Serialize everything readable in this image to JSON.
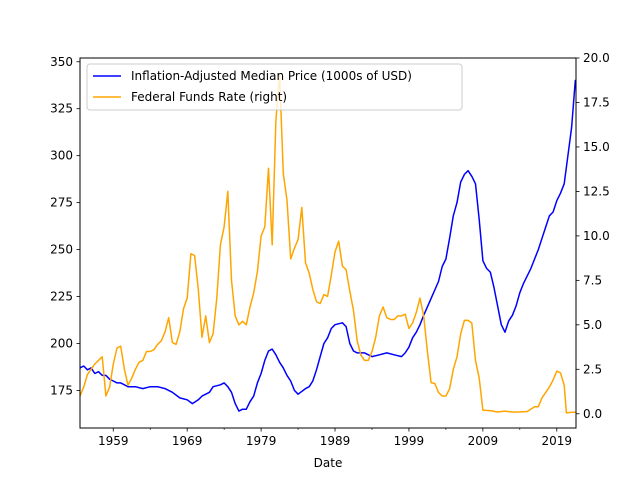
{
  "chart_data": {
    "type": "line",
    "xlabel": "Date",
    "x_ticks": [
      "1959",
      "1969",
      "1979",
      "1989",
      "1999",
      "2009",
      "2019"
    ],
    "x_range": [
      1954.5,
      2021.6
    ],
    "y_left": {
      "range": [
        155,
        352
      ],
      "ticks": [
        175,
        200,
        225,
        250,
        275,
        300,
        325,
        350
      ]
    },
    "y_right": {
      "range": [
        -0.8,
        20.0
      ],
      "ticks": [
        "0.0",
        "2.5",
        "5.0",
        "7.5",
        "10.0",
        "12.5",
        "15.0",
        "17.5",
        "20.0"
      ],
      "tick_values": [
        0,
        2.5,
        5,
        7.5,
        10,
        12.5,
        15,
        17.5,
        20
      ]
    },
    "legend_position": "upper-left",
    "series": [
      {
        "name": "Inflation-Adjusted Median Price (1000s of USD)",
        "axis": "left",
        "color": "#0000ff",
        "points": [
          [
            1954.5,
            187
          ],
          [
            1955,
            188
          ],
          [
            1955.5,
            186
          ],
          [
            1956,
            187
          ],
          [
            1956.5,
            184
          ],
          [
            1957,
            185
          ],
          [
            1957.5,
            183
          ],
          [
            1958,
            183
          ],
          [
            1958.5,
            181
          ],
          [
            1959,
            180
          ],
          [
            1959.5,
            179
          ],
          [
            1960,
            179
          ],
          [
            1960.5,
            178
          ],
          [
            1961,
            177
          ],
          [
            1962,
            177
          ],
          [
            1963,
            176
          ],
          [
            1964,
            177
          ],
          [
            1965,
            177
          ],
          [
            1966,
            176
          ],
          [
            1967,
            174
          ],
          [
            1968,
            171
          ],
          [
            1969,
            170
          ],
          [
            1969.7,
            168
          ],
          [
            1970.5,
            170
          ],
          [
            1971,
            172
          ],
          [
            1972,
            174
          ],
          [
            1972.5,
            177
          ],
          [
            1973.5,
            178
          ],
          [
            1974,
            179
          ],
          [
            1974.5,
            177
          ],
          [
            1975,
            174
          ],
          [
            1975.5,
            168
          ],
          [
            1976,
            164
          ],
          [
            1976.5,
            165
          ],
          [
            1977,
            165
          ],
          [
            1977.5,
            169
          ],
          [
            1978,
            172
          ],
          [
            1978.5,
            179
          ],
          [
            1979,
            184
          ],
          [
            1979.5,
            191
          ],
          [
            1980,
            196
          ],
          [
            1980.5,
            197
          ],
          [
            1981,
            194
          ],
          [
            1981.5,
            190
          ],
          [
            1982,
            187
          ],
          [
            1982.5,
            183
          ],
          [
            1983,
            180
          ],
          [
            1983.5,
            175
          ],
          [
            1984,
            173
          ],
          [
            1985,
            176
          ],
          [
            1985.5,
            177
          ],
          [
            1986,
            180
          ],
          [
            1986.5,
            186
          ],
          [
            1987,
            193
          ],
          [
            1987.5,
            200
          ],
          [
            1988,
            203
          ],
          [
            1988.5,
            208
          ],
          [
            1989,
            210
          ],
          [
            1990,
            211
          ],
          [
            1990.5,
            209
          ],
          [
            1991,
            200
          ],
          [
            1991.5,
            196
          ],
          [
            1992,
            195
          ],
          [
            1993,
            195
          ],
          [
            1994,
            193
          ],
          [
            1995,
            194
          ],
          [
            1996,
            195
          ],
          [
            1997,
            194
          ],
          [
            1998,
            193
          ],
          [
            1998.5,
            195
          ],
          [
            1999,
            198
          ],
          [
            1999.5,
            203
          ],
          [
            2000,
            206
          ],
          [
            2000.5,
            210
          ],
          [
            2001,
            215
          ],
          [
            2002,
            224
          ],
          [
            2003,
            233
          ],
          [
            2003.5,
            241
          ],
          [
            2004,
            245
          ],
          [
            2004.5,
            256
          ],
          [
            2005,
            268
          ],
          [
            2005.5,
            275
          ],
          [
            2006,
            286
          ],
          [
            2006.5,
            290
          ],
          [
            2007,
            292
          ],
          [
            2007.5,
            289
          ],
          [
            2008,
            285
          ],
          [
            2008.5,
            266
          ],
          [
            2009,
            244
          ],
          [
            2009.5,
            240
          ],
          [
            2010,
            238
          ],
          [
            2010.5,
            230
          ],
          [
            2011,
            220
          ],
          [
            2011.5,
            210
          ],
          [
            2012,
            206
          ],
          [
            2012.5,
            212
          ],
          [
            2013,
            215
          ],
          [
            2013.5,
            220
          ],
          [
            2014,
            227
          ],
          [
            2014.5,
            232
          ],
          [
            2015,
            236
          ],
          [
            2015.5,
            240
          ],
          [
            2016,
            245
          ],
          [
            2016.5,
            250
          ],
          [
            2017,
            256
          ],
          [
            2017.5,
            262
          ],
          [
            2018,
            268
          ],
          [
            2018.5,
            270
          ],
          [
            2019,
            276
          ],
          [
            2019.5,
            280
          ],
          [
            2020,
            285
          ],
          [
            2020.5,
            300
          ],
          [
            2021,
            315
          ],
          [
            2021.5,
            340
          ]
        ]
      },
      {
        "name": "Federal Funds Rate (right)",
        "axis": "right",
        "color": "#ffa500",
        "points": [
          [
            1954.5,
            1.0
          ],
          [
            1955,
            1.5
          ],
          [
            1955.5,
            2.2
          ],
          [
            1956,
            2.5
          ],
          [
            1956.5,
            2.8
          ],
          [
            1957,
            3.0
          ],
          [
            1957.5,
            3.2
          ],
          [
            1958,
            1.0
          ],
          [
            1958.5,
            1.5
          ],
          [
            1959,
            2.8
          ],
          [
            1959.5,
            3.7
          ],
          [
            1960,
            3.8
          ],
          [
            1960.5,
            2.5
          ],
          [
            1961,
            1.6
          ],
          [
            1961.5,
            2.0
          ],
          [
            1962,
            2.5
          ],
          [
            1962.5,
            2.9
          ],
          [
            1963,
            3.0
          ],
          [
            1963.5,
            3.5
          ],
          [
            1964,
            3.5
          ],
          [
            1964.5,
            3.6
          ],
          [
            1965,
            3.9
          ],
          [
            1965.5,
            4.1
          ],
          [
            1966,
            4.6
          ],
          [
            1966.5,
            5.4
          ],
          [
            1967,
            4.0
          ],
          [
            1967.5,
            3.9
          ],
          [
            1968,
            4.6
          ],
          [
            1968.5,
            5.9
          ],
          [
            1969,
            6.5
          ],
          [
            1969.5,
            9.0
          ],
          [
            1970,
            8.9
          ],
          [
            1970.5,
            7.0
          ],
          [
            1971,
            4.3
          ],
          [
            1971.5,
            5.5
          ],
          [
            1972,
            4.0
          ],
          [
            1972.5,
            4.5
          ],
          [
            1973,
            6.5
          ],
          [
            1973.5,
            9.5
          ],
          [
            1974,
            10.5
          ],
          [
            1974.5,
            12.5
          ],
          [
            1975,
            7.5
          ],
          [
            1975.5,
            5.5
          ],
          [
            1976,
            5.0
          ],
          [
            1976.5,
            5.2
          ],
          [
            1977,
            5.0
          ],
          [
            1977.5,
            6.0
          ],
          [
            1978,
            6.8
          ],
          [
            1978.5,
            8.0
          ],
          [
            1979,
            10.0
          ],
          [
            1979.5,
            10.5
          ],
          [
            1980,
            13.8
          ],
          [
            1980.5,
            9.5
          ],
          [
            1981,
            16.5
          ],
          [
            1981.5,
            19.1
          ],
          [
            1982,
            13.5
          ],
          [
            1982.5,
            12.0
          ],
          [
            1983,
            8.7
          ],
          [
            1983.5,
            9.3
          ],
          [
            1984,
            9.8
          ],
          [
            1984.5,
            11.6
          ],
          [
            1985,
            8.5
          ],
          [
            1985.5,
            7.9
          ],
          [
            1986,
            7.0
          ],
          [
            1986.5,
            6.3
          ],
          [
            1987,
            6.2
          ],
          [
            1987.5,
            6.7
          ],
          [
            1988,
            6.6
          ],
          [
            1988.5,
            7.8
          ],
          [
            1989,
            9.1
          ],
          [
            1989.5,
            9.7
          ],
          [
            1990,
            8.3
          ],
          [
            1990.5,
            8.1
          ],
          [
            1991,
            6.9
          ],
          [
            1991.5,
            5.8
          ],
          [
            1992,
            4.1
          ],
          [
            1992.5,
            3.3
          ],
          [
            1993,
            3.0
          ],
          [
            1993.5,
            3.0
          ],
          [
            1994,
            3.5
          ],
          [
            1994.5,
            4.3
          ],
          [
            1995,
            5.5
          ],
          [
            1995.5,
            6.0
          ],
          [
            1996,
            5.4
          ],
          [
            1996.5,
            5.3
          ],
          [
            1997,
            5.3
          ],
          [
            1997.5,
            5.5
          ],
          [
            1998,
            5.5
          ],
          [
            1998.5,
            5.6
          ],
          [
            1999,
            4.8
          ],
          [
            1999.5,
            5.1
          ],
          [
            2000,
            5.7
          ],
          [
            2000.5,
            6.5
          ],
          [
            2001,
            5.5
          ],
          [
            2001.5,
            3.5
          ],
          [
            2002,
            1.75
          ],
          [
            2002.5,
            1.7
          ],
          [
            2003,
            1.2
          ],
          [
            2003.5,
            1.0
          ],
          [
            2004,
            1.0
          ],
          [
            2004.5,
            1.4
          ],
          [
            2005,
            2.5
          ],
          [
            2005.5,
            3.2
          ],
          [
            2006,
            4.5
          ],
          [
            2006.5,
            5.25
          ],
          [
            2007,
            5.25
          ],
          [
            2007.5,
            5.1
          ],
          [
            2008,
            3.0
          ],
          [
            2008.5,
            2.0
          ],
          [
            2009,
            0.2
          ],
          [
            2010,
            0.18
          ],
          [
            2011,
            0.1
          ],
          [
            2012,
            0.15
          ],
          [
            2013,
            0.1
          ],
          [
            2014,
            0.1
          ],
          [
            2015,
            0.13
          ],
          [
            2016,
            0.4
          ],
          [
            2016.5,
            0.4
          ],
          [
            2017,
            0.9
          ],
          [
            2017.5,
            1.2
          ],
          [
            2018,
            1.5
          ],
          [
            2018.5,
            1.9
          ],
          [
            2019,
            2.4
          ],
          [
            2019.5,
            2.3
          ],
          [
            2020,
            1.6
          ],
          [
            2020.3,
            0.05
          ],
          [
            2021,
            0.08
          ],
          [
            2021.5,
            0.08
          ]
        ]
      }
    ]
  }
}
